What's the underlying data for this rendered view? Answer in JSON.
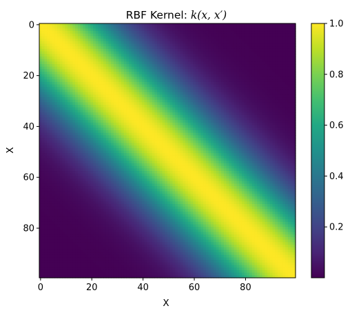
{
  "chart_data": {
    "type": "heatmap",
    "title": "RBF Kernel: ",
    "title_math": "k(x, x′)",
    "xlabel": "X",
    "ylabel": "X",
    "n_rows": 100,
    "n_cols": 100,
    "kernel": "rbf",
    "length_scale": 20,
    "value_formula": "exp(-(i - j)^2 / (2 * 20^2))",
    "xlim": [
      -0.5,
      99.5
    ],
    "ylim": [
      99.5,
      -0.5
    ],
    "xticks": [
      0,
      20,
      40,
      60,
      80
    ],
    "yticks": [
      0,
      20,
      40,
      60,
      80
    ],
    "xtick_labels": [
      "0",
      "20",
      "40",
      "60",
      "80"
    ],
    "ytick_labels": [
      "0",
      "20",
      "40",
      "60",
      "80"
    ],
    "colormap": "viridis",
    "vmin": 0.0,
    "vmax": 1.0,
    "colorbar": {
      "ticks": [
        0.2,
        0.4,
        0.6,
        0.8,
        1.0
      ],
      "tick_labels": [
        "0.2",
        "0.4",
        "0.6",
        "0.8",
        "1.0"
      ]
    },
    "grid": false
  }
}
